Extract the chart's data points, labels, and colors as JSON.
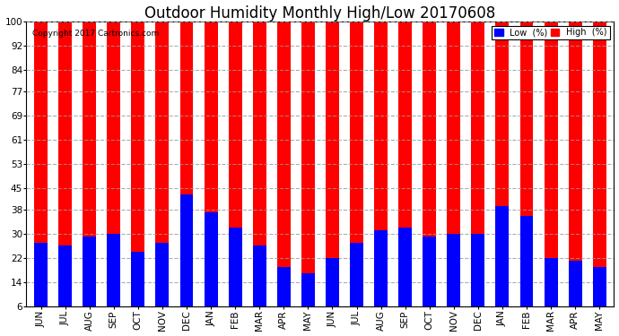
{
  "title": "Outdoor Humidity Monthly High/Low 20170608",
  "copyright": "Copyright 2017 Cartronics.com",
  "months": [
    "JUN",
    "JUL",
    "AUG",
    "SEP",
    "OCT",
    "NOV",
    "DEC",
    "JAN",
    "FEB",
    "MAR",
    "APR",
    "MAY",
    "JUN",
    "JUL",
    "AUG",
    "SEP",
    "OCT",
    "NOV",
    "DEC",
    "JAN",
    "FEB",
    "MAR",
    "APR",
    "MAY"
  ],
  "high_values": [
    100,
    100,
    100,
    100,
    100,
    100,
    100,
    100,
    100,
    100,
    100,
    100,
    100,
    100,
    100,
    100,
    100,
    100,
    100,
    100,
    100,
    100,
    100,
    100
  ],
  "low_values": [
    27,
    26,
    29,
    30,
    24,
    27,
    43,
    37,
    32,
    26,
    19,
    17,
    22,
    27,
    31,
    32,
    29,
    30,
    30,
    39,
    36,
    22,
    21,
    19
  ],
  "high_color": "#ff0000",
  "low_color": "#0000ff",
  "bg_color": "#ffffff",
  "plot_bg_color": "#ffffff",
  "yticks": [
    6,
    14,
    22,
    30,
    38,
    45,
    53,
    61,
    69,
    77,
    84,
    92,
    100
  ],
  "ymin": 6,
  "ymax": 100,
  "bar_width": 0.55,
  "title_fontsize": 12,
  "tick_fontsize": 7.5,
  "legend_label_low": "Low  (%)",
  "legend_label_high": "High  (%)",
  "grid_color": "#999999",
  "grid_style": "--",
  "grid_alpha": 0.8
}
